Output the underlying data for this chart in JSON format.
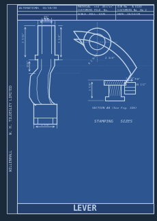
{
  "bg_color": "#3060a0",
  "border_color": "#b8ccdd",
  "line_color": "#c0d4e8",
  "dim_color": "#c0d4e8",
  "title": "LEVER",
  "stamping": "STAMPING   SIZES",
  "section_label": "SECTION AB (See Fig. 326)",
  "side_text": "W. H. TILDESLEY LIMITED   WILLENHALL",
  "header_left": "ALTERATIONS  16/10/30",
  "header_mid1": "MATERIAL  std  45t/in²",
  "header_mid2": "CUSTOMERS FOLD  No.",
  "header_mid3": "SCALE  FULL  SIZE",
  "header_right1": "OUR No   A 6160",
  "header_right2": "CUSTOMERS No  No 2",
  "header_right3": "DATE  16/12/29",
  "outer_bg": "#1a2a3a",
  "paper_bg": "#2d5590",
  "header_bg": "#234070",
  "side_bar_bg": "#243858"
}
